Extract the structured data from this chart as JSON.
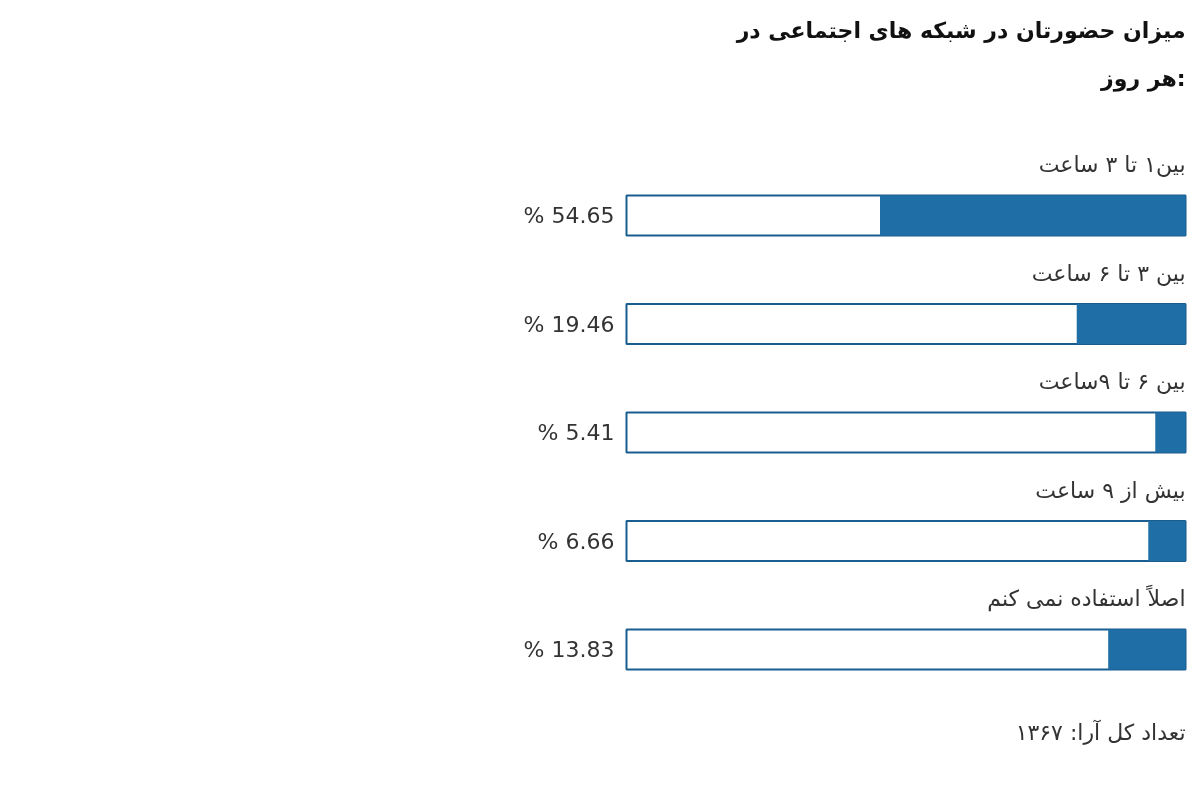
{
  "chart_data": {
    "type": "bar",
    "orientation": "horizontal",
    "title": "میزان حضورتان در شبکه های اجتماعی در هر روز:",
    "categories": [
      "بین۱ تا ۳ ساعت",
      "بین ۳ تا ۶ ساعت",
      "بین ۶ تا ۹ساعت",
      "بیش از ۹ ساعت",
      "اصلاً استفاده نمی کنم"
    ],
    "values": [
      54.65,
      19.46,
      5.41,
      6.66,
      13.83
    ],
    "value_labels": [
      "% 54.65",
      "% 19.46",
      "% 5.41",
      "% 6.66",
      "% 13.83"
    ],
    "color": "#1f6fa6",
    "xlim": [
      100,
      0
    ],
    "tick_labels": false,
    "grid": false,
    "annotations": [
      "تعداد کل آرا: ۱۳۶۷"
    ]
  }
}
